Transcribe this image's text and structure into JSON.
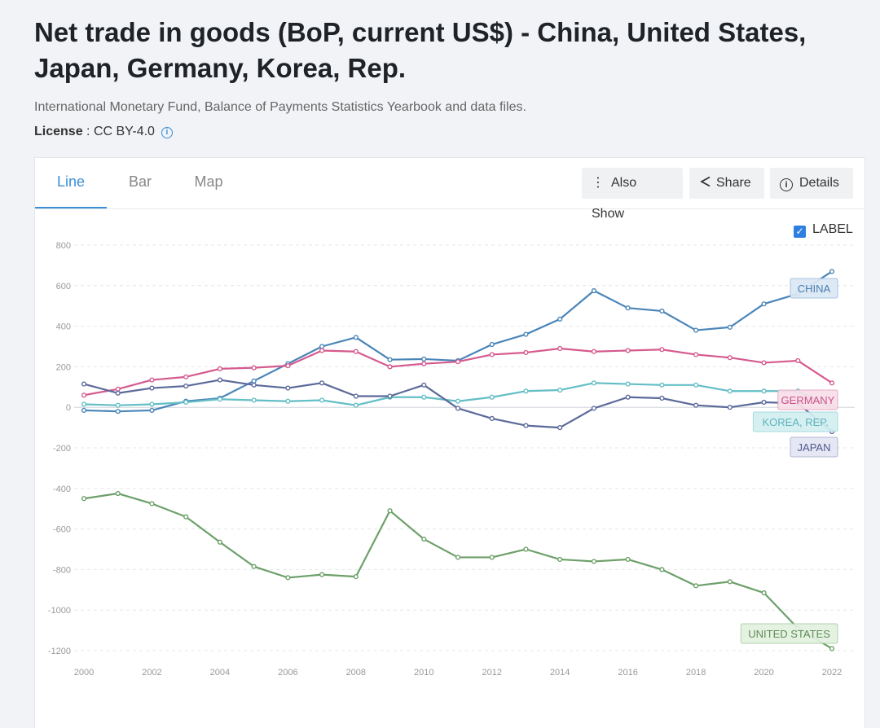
{
  "page": {
    "title": "Net trade in goods (BoP, current US$) - China, United States, Japan, Germany, Korea, Rep.",
    "source": "International Monetary Fund, Balance of Payments Statistics Yearbook and data files.",
    "license_label": "License",
    "license_sep": " : ",
    "license_value": "CC BY-4.0",
    "license_info_icon": "info-icon"
  },
  "tabs": [
    {
      "label": "Line"
    },
    {
      "label": "Bar"
    },
    {
      "label": "Map"
    }
  ],
  "toolbar": {
    "also_show_label": "Also Show",
    "also_show_icon": "vertical-dots-icon",
    "share_label": "Share",
    "share_icon": "share-icon",
    "details_label": "Details",
    "details_icon": "info-icon"
  },
  "label_toggle": {
    "label": "LABEL",
    "checked": true
  },
  "chart_data": {
    "type": "line",
    "title": "Net trade in goods (BoP, current US$) - China, United States, Japan, Germany, Korea, Rep.",
    "xlabel": "",
    "ylabel": "",
    "ylim": [
      -1200,
      800
    ],
    "yticks": [
      800,
      600,
      400,
      200,
      0,
      -200,
      -400,
      -600,
      -800,
      -1000,
      -1200
    ],
    "xticks": [
      2000,
      2002,
      2004,
      2006,
      2008,
      2010,
      2012,
      2014,
      2016,
      2018,
      2020,
      2022
    ],
    "x": [
      2000,
      2001,
      2002,
      2003,
      2004,
      2005,
      2006,
      2007,
      2008,
      2009,
      2010,
      2011,
      2012,
      2013,
      2014,
      2015,
      2016,
      2017,
      2018,
      2019,
      2020,
      2021,
      2022
    ],
    "grid": true,
    "series": [
      {
        "name": "CHINA",
        "color": "#4a85b8",
        "values": [
          -15,
          -20,
          -15,
          30,
          45,
          130,
          215,
          300,
          345,
          235,
          238,
          230,
          310,
          360,
          435,
          575,
          490,
          475,
          380,
          395,
          510,
          560,
          670
        ]
      },
      {
        "name": "GERMANY",
        "color": "#d55a8e",
        "values": [
          60,
          90,
          135,
          150,
          190,
          195,
          205,
          280,
          275,
          200,
          215,
          225,
          260,
          270,
          290,
          275,
          280,
          285,
          260,
          245,
          220,
          230,
          120
        ]
      },
      {
        "name": "KOREA, REP.",
        "color": "#64bec6",
        "values": [
          15,
          10,
          15,
          25,
          40,
          35,
          30,
          35,
          10,
          50,
          50,
          30,
          50,
          80,
          85,
          120,
          115,
          110,
          110,
          80,
          80,
          80,
          0
        ]
      },
      {
        "name": "JAPAN",
        "color": "#5c6a9a",
        "values": [
          115,
          70,
          95,
          105,
          135,
          110,
          95,
          120,
          55,
          55,
          110,
          -5,
          -55,
          -90,
          -100,
          -5,
          50,
          45,
          10,
          0,
          25,
          20,
          -120
        ]
      },
      {
        "name": "UNITED STATES",
        "color": "#6da06a",
        "values": [
          -450,
          -425,
          -475,
          -540,
          -665,
          -785,
          -840,
          -825,
          -835,
          -510,
          -650,
          -740,
          -740,
          -700,
          -750,
          -760,
          -750,
          -800,
          -880,
          -860,
          -915,
          -1090,
          -1190
        ]
      }
    ]
  }
}
